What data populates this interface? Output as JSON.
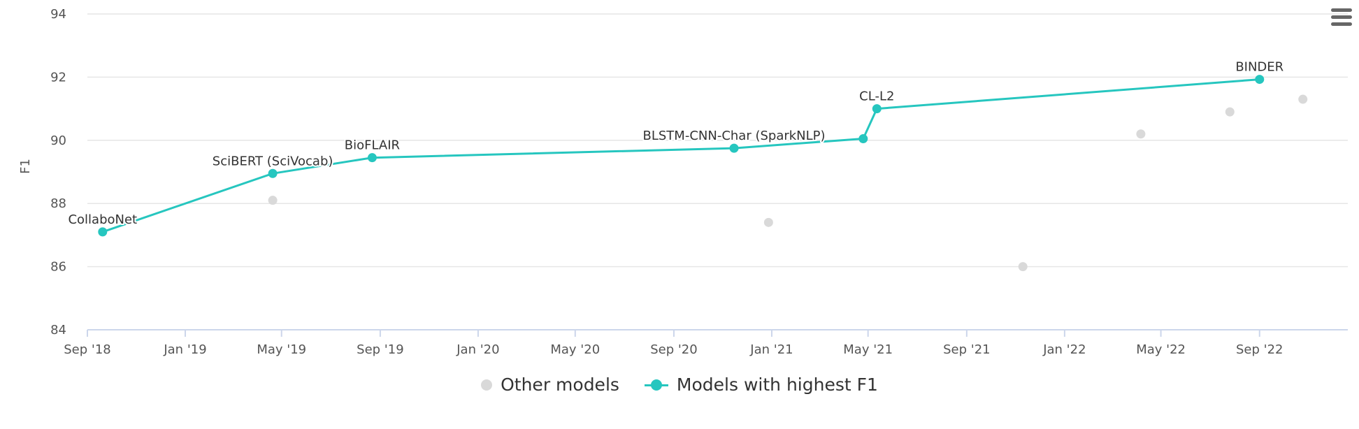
{
  "chart_data": {
    "type": "line",
    "ylabel": "F1",
    "xlabel": "",
    "ylim": [
      84,
      94
    ],
    "yticks": [
      84,
      86,
      88,
      90,
      92,
      94
    ],
    "xlim": [
      "2018-09-01",
      "2022-12-20"
    ],
    "xticks": [
      {
        "date": "2018-09-01",
        "label": "Sep '18"
      },
      {
        "date": "2019-01-01",
        "label": "Jan '19"
      },
      {
        "date": "2019-05-01",
        "label": "May '19"
      },
      {
        "date": "2019-09-01",
        "label": "Sep '19"
      },
      {
        "date": "2020-01-01",
        "label": "Jan '20"
      },
      {
        "date": "2020-05-01",
        "label": "May '20"
      },
      {
        "date": "2020-09-01",
        "label": "Sep '20"
      },
      {
        "date": "2021-01-01",
        "label": "Jan '21"
      },
      {
        "date": "2021-05-01",
        "label": "May '21"
      },
      {
        "date": "2021-09-01",
        "label": "Sep '21"
      },
      {
        "date": "2022-01-01",
        "label": "Jan '22"
      },
      {
        "date": "2022-05-01",
        "label": "May '22"
      },
      {
        "date": "2022-09-01",
        "label": "Sep '22"
      }
    ],
    "grid": true,
    "legend_position": "bottom-center",
    "series": [
      {
        "name": "Other models",
        "kind": "scatter",
        "color": "#d9d9d9",
        "points": [
          {
            "date": "2019-04-20",
            "value": 88.1
          },
          {
            "date": "2020-12-28",
            "value": 87.4
          },
          {
            "date": "2021-11-10",
            "value": 86.0
          },
          {
            "date": "2022-04-06",
            "value": 90.2
          },
          {
            "date": "2022-07-26",
            "value": 90.9
          },
          {
            "date": "2022-10-25",
            "value": 91.3
          }
        ]
      },
      {
        "name": "Models with highest F1",
        "kind": "line",
        "color": "#26c6bf",
        "points": [
          {
            "date": "2018-09-20",
            "value": 87.1,
            "label": "CollaboNet"
          },
          {
            "date": "2019-04-20",
            "value": 88.95,
            "label": "SciBERT (SciVocab)"
          },
          {
            "date": "2019-08-22",
            "value": 89.45,
            "label": "BioFLAIR"
          },
          {
            "date": "2020-11-15",
            "value": 89.75,
            "label": "BLSTM-CNN-Char (SparkNLP)"
          },
          {
            "date": "2021-04-25",
            "value": 90.05,
            "label": ""
          },
          {
            "date": "2021-05-12",
            "value": 91.0,
            "label": "CL-L2"
          },
          {
            "date": "2022-09-01",
            "value": 91.93,
            "label": "BINDER"
          }
        ]
      }
    ]
  },
  "legend": {
    "other_label": "Other models",
    "best_label": "Models with highest F1"
  },
  "menu": {
    "icon": "hamburger-menu-icon"
  }
}
